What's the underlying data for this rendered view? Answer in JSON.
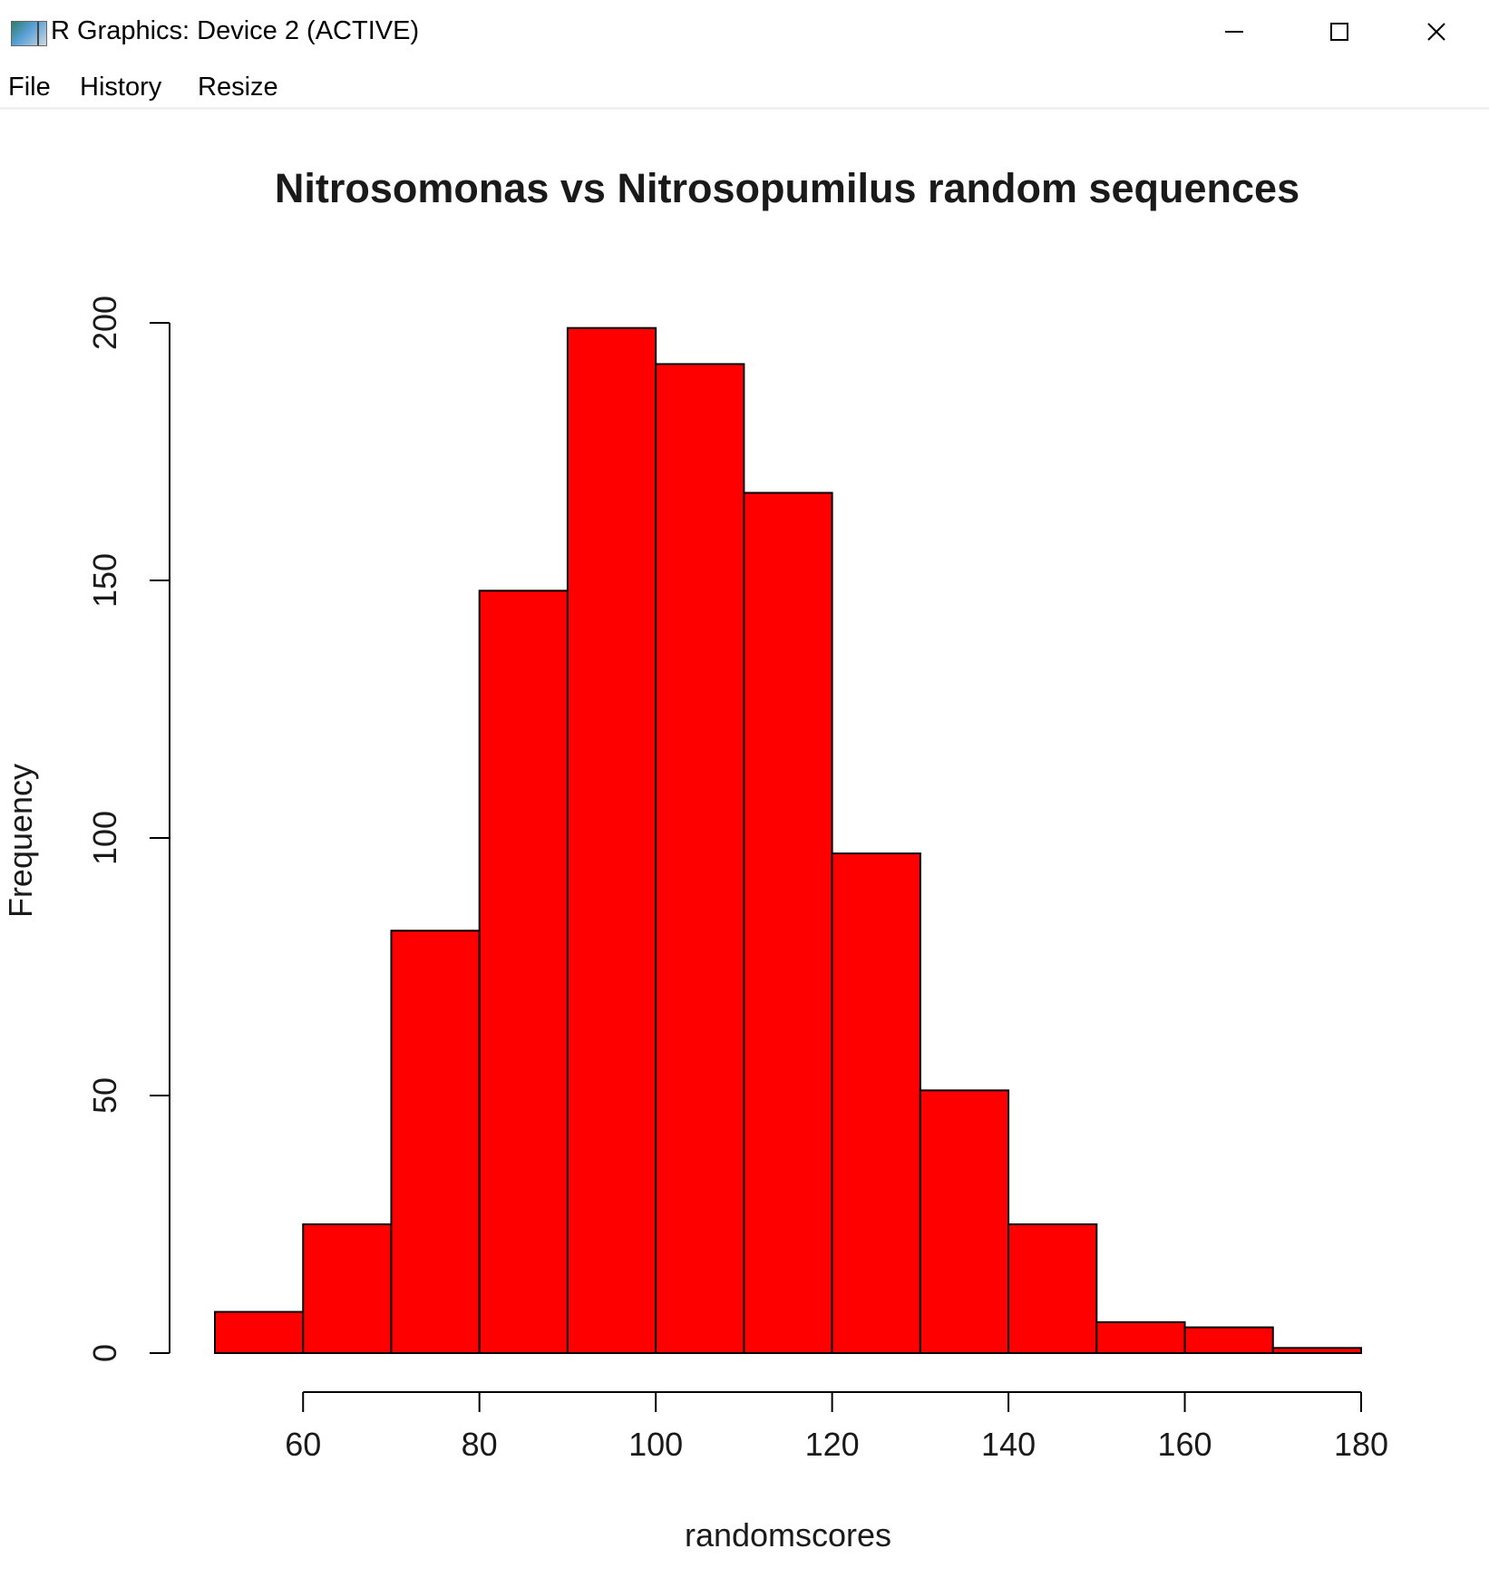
{
  "window": {
    "title": "R Graphics: Device 2 (ACTIVE)",
    "icons": {
      "app": "r-graphics-icon",
      "minimize": "minimize-icon",
      "maximize": "maximize-icon",
      "close": "close-icon"
    }
  },
  "menu": {
    "items": [
      {
        "label": "File"
      },
      {
        "label": "History"
      },
      {
        "label": "Resize"
      }
    ]
  },
  "chart_data": {
    "type": "bar",
    "title": "Nitrosomonas vs Nitrosopumilus random sequences",
    "xlabel": "randomscores",
    "ylabel": "Frequency",
    "bins": [
      {
        "from": 50,
        "to": 60,
        "count": 8
      },
      {
        "from": 60,
        "to": 70,
        "count": 25
      },
      {
        "from": 70,
        "to": 80,
        "count": 82
      },
      {
        "from": 80,
        "to": 90,
        "count": 148
      },
      {
        "from": 90,
        "to": 100,
        "count": 199
      },
      {
        "from": 100,
        "to": 110,
        "count": 192
      },
      {
        "from": 110,
        "to": 120,
        "count": 167
      },
      {
        "from": 120,
        "to": 130,
        "count": 97
      },
      {
        "from": 130,
        "to": 140,
        "count": 51
      },
      {
        "from": 140,
        "to": 150,
        "count": 25
      },
      {
        "from": 150,
        "to": 160,
        "count": 6
      },
      {
        "from": 160,
        "to": 170,
        "count": 5
      },
      {
        "from": 170,
        "to": 180,
        "count": 1
      }
    ],
    "xlim": [
      50,
      180
    ],
    "ylim": [
      0,
      200
    ],
    "xticks": [
      60,
      80,
      100,
      120,
      140,
      160,
      180
    ],
    "yticks": [
      0,
      50,
      100,
      150,
      200
    ],
    "bar_color": "#ff0000",
    "edge_color": "#000000",
    "grid": false
  }
}
